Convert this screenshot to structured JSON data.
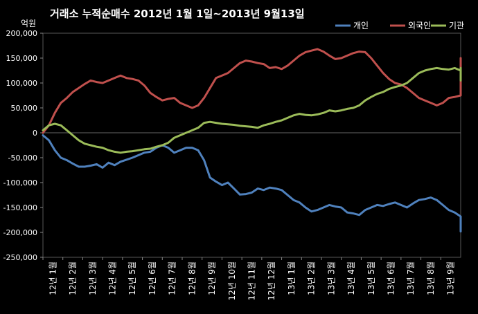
{
  "chart_data": {
    "type": "line",
    "title": "거래소  누적순매수 2012년 1월 1일~2013년 9월13일",
    "unit_label": "억원",
    "ylim": [
      -250000,
      200000
    ],
    "y_ticks": [
      {
        "value": 200000,
        "label": "200,000"
      },
      {
        "value": 150000,
        "label": "150,000"
      },
      {
        "value": 100000,
        "label": "100,000"
      },
      {
        "value": 50000,
        "label": "50,000"
      },
      {
        "value": 0,
        "label": "0"
      },
      {
        "value": -50000,
        "label": "-50,000"
      },
      {
        "value": -100000,
        "label": "-100,000"
      },
      {
        "value": -150000,
        "label": "-150,000"
      },
      {
        "value": -200000,
        "label": "-200,000"
      },
      {
        "value": -250000,
        "label": "-250,000"
      }
    ],
    "categories": [
      "12년 1월",
      "12년 2월",
      "12년 3월",
      "12년 4월",
      "12년 5월",
      "12년 6월",
      "12년 7월",
      "12년 8월",
      "12년 9월",
      "12년 10월",
      "12년 11월",
      "12년 12월",
      "13년 1월",
      "13년 2월",
      "13년 3월",
      "13년 4월",
      "13년 5월",
      "13년 6월",
      "13년 7월",
      "13년 8월",
      "13년 9월"
    ],
    "grid": false,
    "legend_position": "top-right",
    "series": [
      {
        "name": "개인",
        "color": "#4F81BD",
        "values": [
          [
            0,
            -5000
          ],
          [
            0.3,
            -15000
          ],
          [
            0.6,
            -35000
          ],
          [
            0.9,
            -50000
          ],
          [
            1.2,
            -55000
          ],
          [
            1.5,
            -62000
          ],
          [
            1.8,
            -68000
          ],
          [
            2.1,
            -68000
          ],
          [
            2.4,
            -66000
          ],
          [
            2.7,
            -63000
          ],
          [
            3,
            -70000
          ],
          [
            3.3,
            -60000
          ],
          [
            3.6,
            -65000
          ],
          [
            3.9,
            -58000
          ],
          [
            4.2,
            -54000
          ],
          [
            4.5,
            -50000
          ],
          [
            4.8,
            -45000
          ],
          [
            5.1,
            -40000
          ],
          [
            5.4,
            -38000
          ],
          [
            5.7,
            -30000
          ],
          [
            6,
            -25000
          ],
          [
            6.3,
            -30000
          ],
          [
            6.6,
            -40000
          ],
          [
            6.9,
            -35000
          ],
          [
            7.2,
            -30000
          ],
          [
            7.5,
            -30000
          ],
          [
            7.8,
            -35000
          ],
          [
            8.1,
            -55000
          ],
          [
            8.4,
            -90000
          ],
          [
            8.7,
            -98000
          ],
          [
            9,
            -105000
          ],
          [
            9.3,
            -100000
          ],
          [
            9.6,
            -112000
          ],
          [
            9.9,
            -124000
          ],
          [
            10.2,
            -123000
          ],
          [
            10.5,
            -120000
          ],
          [
            10.8,
            -112000
          ],
          [
            11.1,
            -115000
          ],
          [
            11.4,
            -110000
          ],
          [
            11.7,
            -112000
          ],
          [
            12,
            -115000
          ],
          [
            12.3,
            -125000
          ],
          [
            12.6,
            -135000
          ],
          [
            12.9,
            -140000
          ],
          [
            13.2,
            -150000
          ],
          [
            13.5,
            -158000
          ],
          [
            13.8,
            -155000
          ],
          [
            14.1,
            -150000
          ],
          [
            14.4,
            -145000
          ],
          [
            14.7,
            -148000
          ],
          [
            15,
            -150000
          ],
          [
            15.3,
            -160000
          ],
          [
            15.6,
            -162000
          ],
          [
            15.9,
            -165000
          ],
          [
            16.2,
            -155000
          ],
          [
            16.5,
            -150000
          ],
          [
            16.8,
            -145000
          ],
          [
            17.1,
            -147000
          ],
          [
            17.4,
            -143000
          ],
          [
            17.7,
            -140000
          ],
          [
            18,
            -145000
          ],
          [
            18.3,
            -150000
          ],
          [
            18.6,
            -142000
          ],
          [
            18.9,
            -135000
          ],
          [
            19.2,
            -133000
          ],
          [
            19.5,
            -130000
          ],
          [
            19.8,
            -135000
          ],
          [
            20.1,
            -145000
          ],
          [
            20.4,
            -155000
          ],
          [
            20.7,
            -160000
          ],
          [
            21,
            -168000
          ],
          [
            21.3,
            -178000
          ],
          [
            21.6,
            -185000
          ],
          [
            21.8,
            -198000
          ]
        ]
      },
      {
        "name": "외국인",
        "color": "#C0504D",
        "values": [
          [
            0,
            0
          ],
          [
            0.3,
            15000
          ],
          [
            0.6,
            40000
          ],
          [
            0.9,
            60000
          ],
          [
            1.2,
            70000
          ],
          [
            1.5,
            82000
          ],
          [
            1.8,
            90000
          ],
          [
            2.1,
            98000
          ],
          [
            2.4,
            105000
          ],
          [
            2.7,
            102000
          ],
          [
            3,
            100000
          ],
          [
            3.3,
            105000
          ],
          [
            3.6,
            110000
          ],
          [
            3.9,
            115000
          ],
          [
            4.2,
            110000
          ],
          [
            4.5,
            108000
          ],
          [
            4.8,
            105000
          ],
          [
            5.1,
            95000
          ],
          [
            5.4,
            80000
          ],
          [
            5.7,
            72000
          ],
          [
            6,
            65000
          ],
          [
            6.3,
            68000
          ],
          [
            6.6,
            70000
          ],
          [
            6.9,
            60000
          ],
          [
            7.2,
            55000
          ],
          [
            7.5,
            50000
          ],
          [
            7.8,
            55000
          ],
          [
            8.1,
            70000
          ],
          [
            8.4,
            90000
          ],
          [
            8.7,
            110000
          ],
          [
            9,
            115000
          ],
          [
            9.3,
            120000
          ],
          [
            9.6,
            130000
          ],
          [
            9.9,
            140000
          ],
          [
            10.2,
            145000
          ],
          [
            10.5,
            143000
          ],
          [
            10.8,
            140000
          ],
          [
            11.1,
            138000
          ],
          [
            11.4,
            130000
          ],
          [
            11.7,
            132000
          ],
          [
            12,
            128000
          ],
          [
            12.3,
            135000
          ],
          [
            12.6,
            145000
          ],
          [
            12.9,
            155000
          ],
          [
            13.2,
            162000
          ],
          [
            13.5,
            165000
          ],
          [
            13.8,
            168000
          ],
          [
            14.1,
            163000
          ],
          [
            14.4,
            155000
          ],
          [
            14.7,
            148000
          ],
          [
            15,
            150000
          ],
          [
            15.3,
            155000
          ],
          [
            15.6,
            160000
          ],
          [
            15.9,
            163000
          ],
          [
            16.2,
            162000
          ],
          [
            16.5,
            150000
          ],
          [
            16.8,
            135000
          ],
          [
            17.1,
            120000
          ],
          [
            17.4,
            108000
          ],
          [
            17.7,
            100000
          ],
          [
            18,
            97000
          ],
          [
            18.3,
            90000
          ],
          [
            18.6,
            80000
          ],
          [
            18.9,
            70000
          ],
          [
            19.2,
            65000
          ],
          [
            19.5,
            60000
          ],
          [
            19.8,
            55000
          ],
          [
            20.1,
            60000
          ],
          [
            20.4,
            70000
          ],
          [
            20.7,
            72000
          ],
          [
            21,
            75000
          ],
          [
            21.3,
            80000
          ],
          [
            21.6,
            90000
          ],
          [
            21.8,
            100000
          ],
          [
            22,
            140000
          ],
          [
            22.1,
            150000
          ]
        ]
      },
      {
        "name": "기관",
        "color": "#9BBB59",
        "values": [
          [
            0,
            5000
          ],
          [
            0.3,
            15000
          ],
          [
            0.6,
            18000
          ],
          [
            0.9,
            15000
          ],
          [
            1.2,
            5000
          ],
          [
            1.5,
            -5000
          ],
          [
            1.8,
            -15000
          ],
          [
            2.1,
            -22000
          ],
          [
            2.4,
            -25000
          ],
          [
            2.7,
            -28000
          ],
          [
            3,
            -30000
          ],
          [
            3.3,
            -35000
          ],
          [
            3.6,
            -38000
          ],
          [
            3.9,
            -40000
          ],
          [
            4.2,
            -38000
          ],
          [
            4.5,
            -37000
          ],
          [
            4.8,
            -35000
          ],
          [
            5.1,
            -33000
          ],
          [
            5.4,
            -32000
          ],
          [
            5.7,
            -28000
          ],
          [
            6,
            -25000
          ],
          [
            6.3,
            -20000
          ],
          [
            6.6,
            -10000
          ],
          [
            6.9,
            -5000
          ],
          [
            7.2,
            0
          ],
          [
            7.5,
            5000
          ],
          [
            7.8,
            10000
          ],
          [
            8.1,
            20000
          ],
          [
            8.4,
            22000
          ],
          [
            8.7,
            20000
          ],
          [
            9,
            18000
          ],
          [
            9.3,
            17000
          ],
          [
            9.6,
            16000
          ],
          [
            9.9,
            14000
          ],
          [
            10.2,
            13000
          ],
          [
            10.5,
            12000
          ],
          [
            10.8,
            10000
          ],
          [
            11.1,
            15000
          ],
          [
            11.4,
            18000
          ],
          [
            11.7,
            22000
          ],
          [
            12,
            25000
          ],
          [
            12.3,
            30000
          ],
          [
            12.6,
            35000
          ],
          [
            12.9,
            38000
          ],
          [
            13.2,
            36000
          ],
          [
            13.5,
            35000
          ],
          [
            13.8,
            37000
          ],
          [
            14.1,
            40000
          ],
          [
            14.4,
            45000
          ],
          [
            14.7,
            43000
          ],
          [
            15,
            45000
          ],
          [
            15.3,
            48000
          ],
          [
            15.6,
            50000
          ],
          [
            15.9,
            55000
          ],
          [
            16.2,
            65000
          ],
          [
            16.5,
            72000
          ],
          [
            16.8,
            78000
          ],
          [
            17.1,
            82000
          ],
          [
            17.4,
            88000
          ],
          [
            17.7,
            92000
          ],
          [
            18,
            95000
          ],
          [
            18.3,
            100000
          ],
          [
            18.6,
            110000
          ],
          [
            18.9,
            120000
          ],
          [
            19.2,
            125000
          ],
          [
            19.5,
            128000
          ],
          [
            19.8,
            130000
          ],
          [
            20.1,
            128000
          ],
          [
            20.4,
            127000
          ],
          [
            20.7,
            130000
          ],
          [
            21,
            125000
          ],
          [
            21.3,
            128000
          ],
          [
            21.6,
            130000
          ],
          [
            21.8,
            130000
          ],
          [
            22,
            105000
          ],
          [
            22.1,
            105000
          ]
        ]
      }
    ]
  }
}
